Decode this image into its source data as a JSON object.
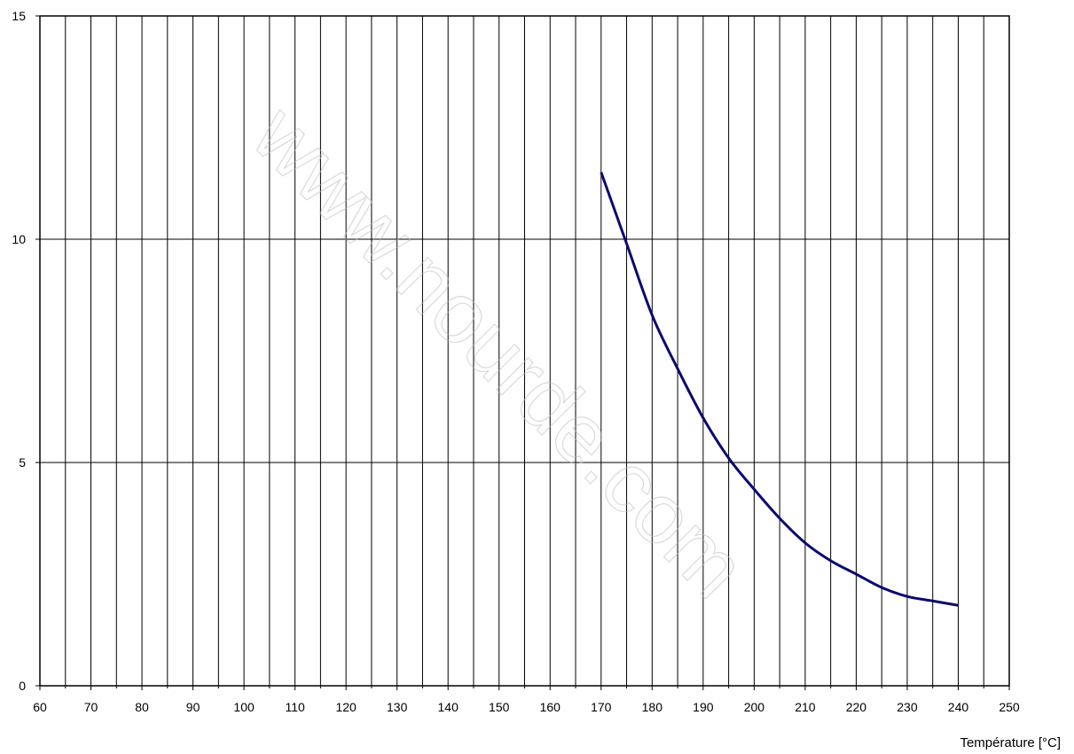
{
  "chart_data": {
    "type": "line",
    "title": "",
    "xlabel": "Température [°C]",
    "ylabel": "",
    "xlim": [
      60,
      250
    ],
    "ylim": [
      0,
      15
    ],
    "x_major_ticks": [
      60,
      70,
      80,
      90,
      100,
      110,
      120,
      130,
      140,
      150,
      160,
      170,
      180,
      190,
      200,
      210,
      220,
      230,
      240,
      250
    ],
    "x_minor_step": 5,
    "y_ticks": [
      0,
      5,
      10,
      15
    ],
    "x_tick_labels": [
      "60",
      "70",
      "80",
      "90",
      "100",
      "110",
      "120",
      "130",
      "140",
      "150",
      "160",
      "170",
      "180",
      "190",
      "200",
      "210",
      "220",
      "230",
      "240",
      "250"
    ],
    "y_tick_labels": [
      "0",
      "5",
      "10",
      "15"
    ],
    "grid": true,
    "legend": "none",
    "series": [
      {
        "color": "#0a0a6e",
        "x": [
          170,
          175,
          180,
          185,
          190,
          195,
          200,
          205,
          210,
          215,
          220,
          225,
          230,
          235,
          240
        ],
        "y": [
          11.5,
          9.9,
          8.3,
          7.1,
          6.0,
          5.1,
          4.4,
          3.75,
          3.2,
          2.8,
          2.5,
          2.2,
          2.0,
          1.9,
          1.8
        ]
      }
    ]
  },
  "watermark": {
    "text": "www.nourde.com"
  }
}
